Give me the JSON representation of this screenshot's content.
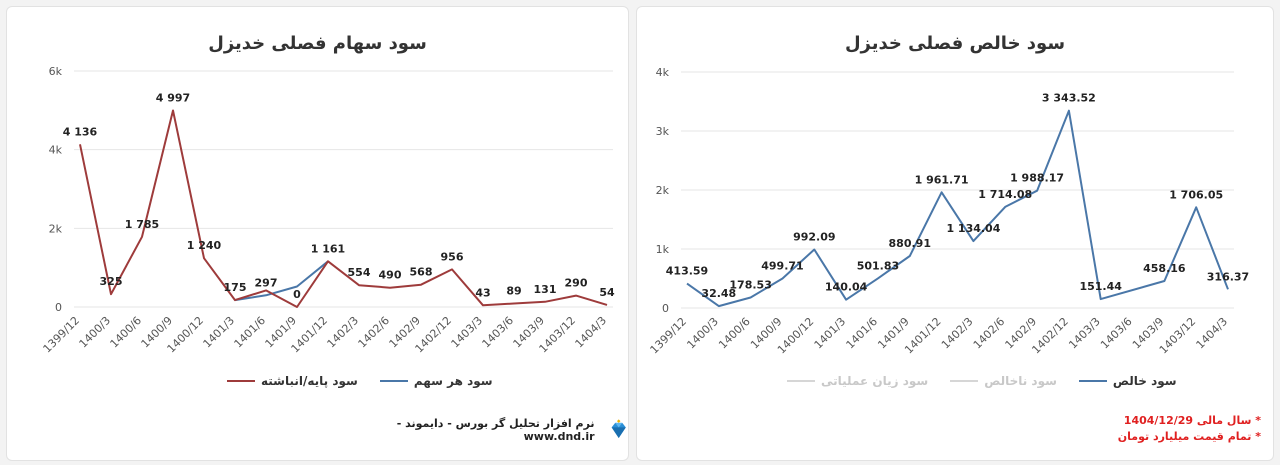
{
  "left_chart": {
    "title": "سود سهام فصلی خدیزل",
    "legend": [
      {
        "label": "سود هر سهم",
        "color": "#4a77a8"
      },
      {
        "label": "سود پایه/انباشته",
        "color": "#9e3b3b"
      }
    ]
  },
  "right_chart": {
    "title": "سود خالص فصلی خدیزل",
    "legend": [
      {
        "label": "سود خالص",
        "color": "#4a77a8"
      },
      {
        "label": "سود ناخالص",
        "color": "#cfcfcf"
      },
      {
        "label": "سود زیان عملیاتی",
        "color": "#cfcfcf"
      }
    ]
  },
  "footer": {
    "software": "نرم افزار تحلیل گر بورس - دایموند -www.dnd.ir"
  },
  "notes": {
    "fiscal_year": "* سال مالی 1404/12/29",
    "unit": "* تمام قیمت میلیارد تومان"
  },
  "chart_data": [
    {
      "type": "line",
      "title": "سود سهام فصلی خدیزل",
      "categories": [
        "1399/12",
        "1400/3",
        "1400/6",
        "1400/9",
        "1400/12",
        "1401/3",
        "1401/6",
        "1401/9",
        "1401/12",
        "1402/3",
        "1402/6",
        "1402/9",
        "1402/12",
        "1403/3",
        "1403/6",
        "1403/9",
        "1403/12",
        "1404/3"
      ],
      "yticks": [
        "0",
        "2k",
        "4k",
        "6k"
      ],
      "ylim": [
        0,
        6000
      ],
      "series": [
        {
          "name": "سود هر سهم",
          "color": "#4a77a8",
          "values": [
            null,
            null,
            null,
            null,
            null,
            175,
            297,
            521,
            1161,
            null,
            null,
            null,
            null,
            null,
            null,
            null,
            null,
            null
          ]
        },
        {
          "name": "سود پایه/انباشته",
          "color": "#9e3b3b",
          "values": [
            4136,
            325,
            1785,
            4997,
            1240,
            175,
            421,
            0,
            1161,
            554,
            490,
            568,
            956,
            43,
            89,
            131,
            290,
            54
          ]
        }
      ],
      "labels": [
        "4 136",
        "325",
        "1 785",
        "4 997",
        "1 240",
        "175",
        "297",
        "0",
        "1 161",
        "554",
        "490",
        "568",
        "956",
        "43",
        "89",
        "131",
        "290",
        "54"
      ],
      "label_values": [
        4136,
        325,
        1785,
        4997,
        1240,
        175,
        297,
        0,
        1161,
        554,
        490,
        568,
        956,
        43,
        89,
        131,
        290,
        54
      ],
      "legend_position": "bottom",
      "grid": true
    },
    {
      "type": "line",
      "title": "سود خالص فصلی خدیزل",
      "categories": [
        "1399/12",
        "1400/3",
        "1400/6",
        "1400/9",
        "1400/12",
        "1401/3",
        "1401/6",
        "1401/9",
        "1401/12",
        "1402/3",
        "1402/6",
        "1402/9",
        "1402/12",
        "1403/3",
        "1403/6",
        "1403/9",
        "1403/12",
        "1404/3"
      ],
      "yticks": [
        "0",
        "1k",
        "2k",
        "3k",
        "4k"
      ],
      "ylim": [
        0,
        4000
      ],
      "series": [
        {
          "name": "سود خالص",
          "color": "#4a77a8",
          "values": [
            413.59,
            32.48,
            178.53,
            499.71,
            992.09,
            140.04,
            501.83,
            880.91,
            1961.71,
            1134.04,
            1714.08,
            1988.17,
            3343.52,
            151.44,
            null,
            458.16,
            1706.05,
            316.37
          ]
        }
      ],
      "labels": [
        "413.59",
        "32.48",
        "178.53",
        "499.71",
        "992.09",
        "140.04",
        "501.83",
        "880.91",
        "1 961.71",
        "1 134.04",
        "1 714.08",
        "1 988.17",
        "3 343.52",
        "151.44",
        "",
        "458.16",
        "1 706.05",
        "316.37"
      ],
      "label_values": [
        413.59,
        32.48,
        178.53,
        499.71,
        992.09,
        140.04,
        501.83,
        880.91,
        1961.71,
        1134.04,
        1714.08,
        1988.17,
        3343.52,
        151.44,
        null,
        458.16,
        1706.05,
        316.37
      ],
      "legend_position": "bottom",
      "grid": true
    }
  ]
}
